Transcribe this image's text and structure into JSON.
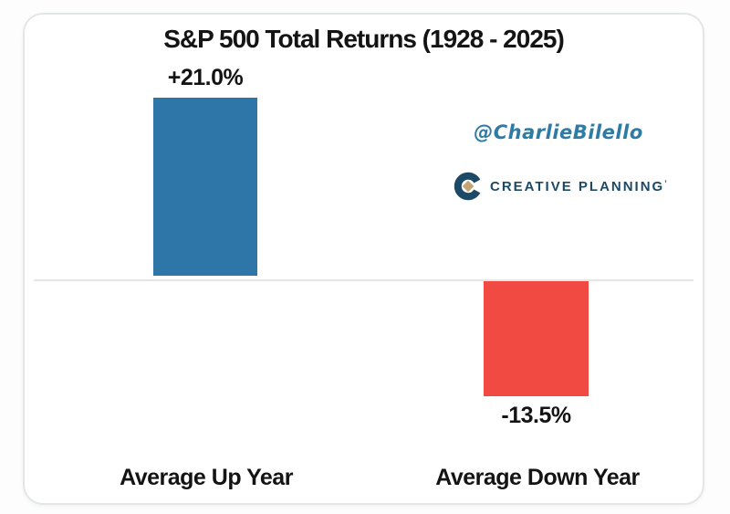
{
  "card": {
    "watermark_handle": "@CharlieBilello",
    "logo_text": "CREATIVE PLANNING",
    "logo_tm": "’"
  },
  "colors": {
    "up_bar": "#2E75A8",
    "down_bar": "#F04A42",
    "ink": "#141414",
    "handle": "#2E7BA6",
    "logo_navy": "#1C4A66",
    "logo_gold": "#C2A572",
    "zero_line": "#E6E6E6",
    "card_border": "#E2E7E5"
  },
  "icons": {
    "logo_mark": "c-ring-with-gold-diamond"
  },
  "chart_data": {
    "type": "bar",
    "title": "S&P 500 Total Returns (1928 - 2025)",
    "categories": [
      "Average Up Year",
      "Average Down Year"
    ],
    "values": [
      21.0,
      -13.5
    ],
    "value_labels": [
      "+21.0%",
      "-13.5%"
    ],
    "xlabel": "",
    "ylabel": "",
    "ylim": [
      -20,
      25
    ],
    "grid": false,
    "legend": "none",
    "baseline": 0,
    "annotations": [
      "@CharlieBilello",
      "CREATIVE PLANNING"
    ]
  }
}
